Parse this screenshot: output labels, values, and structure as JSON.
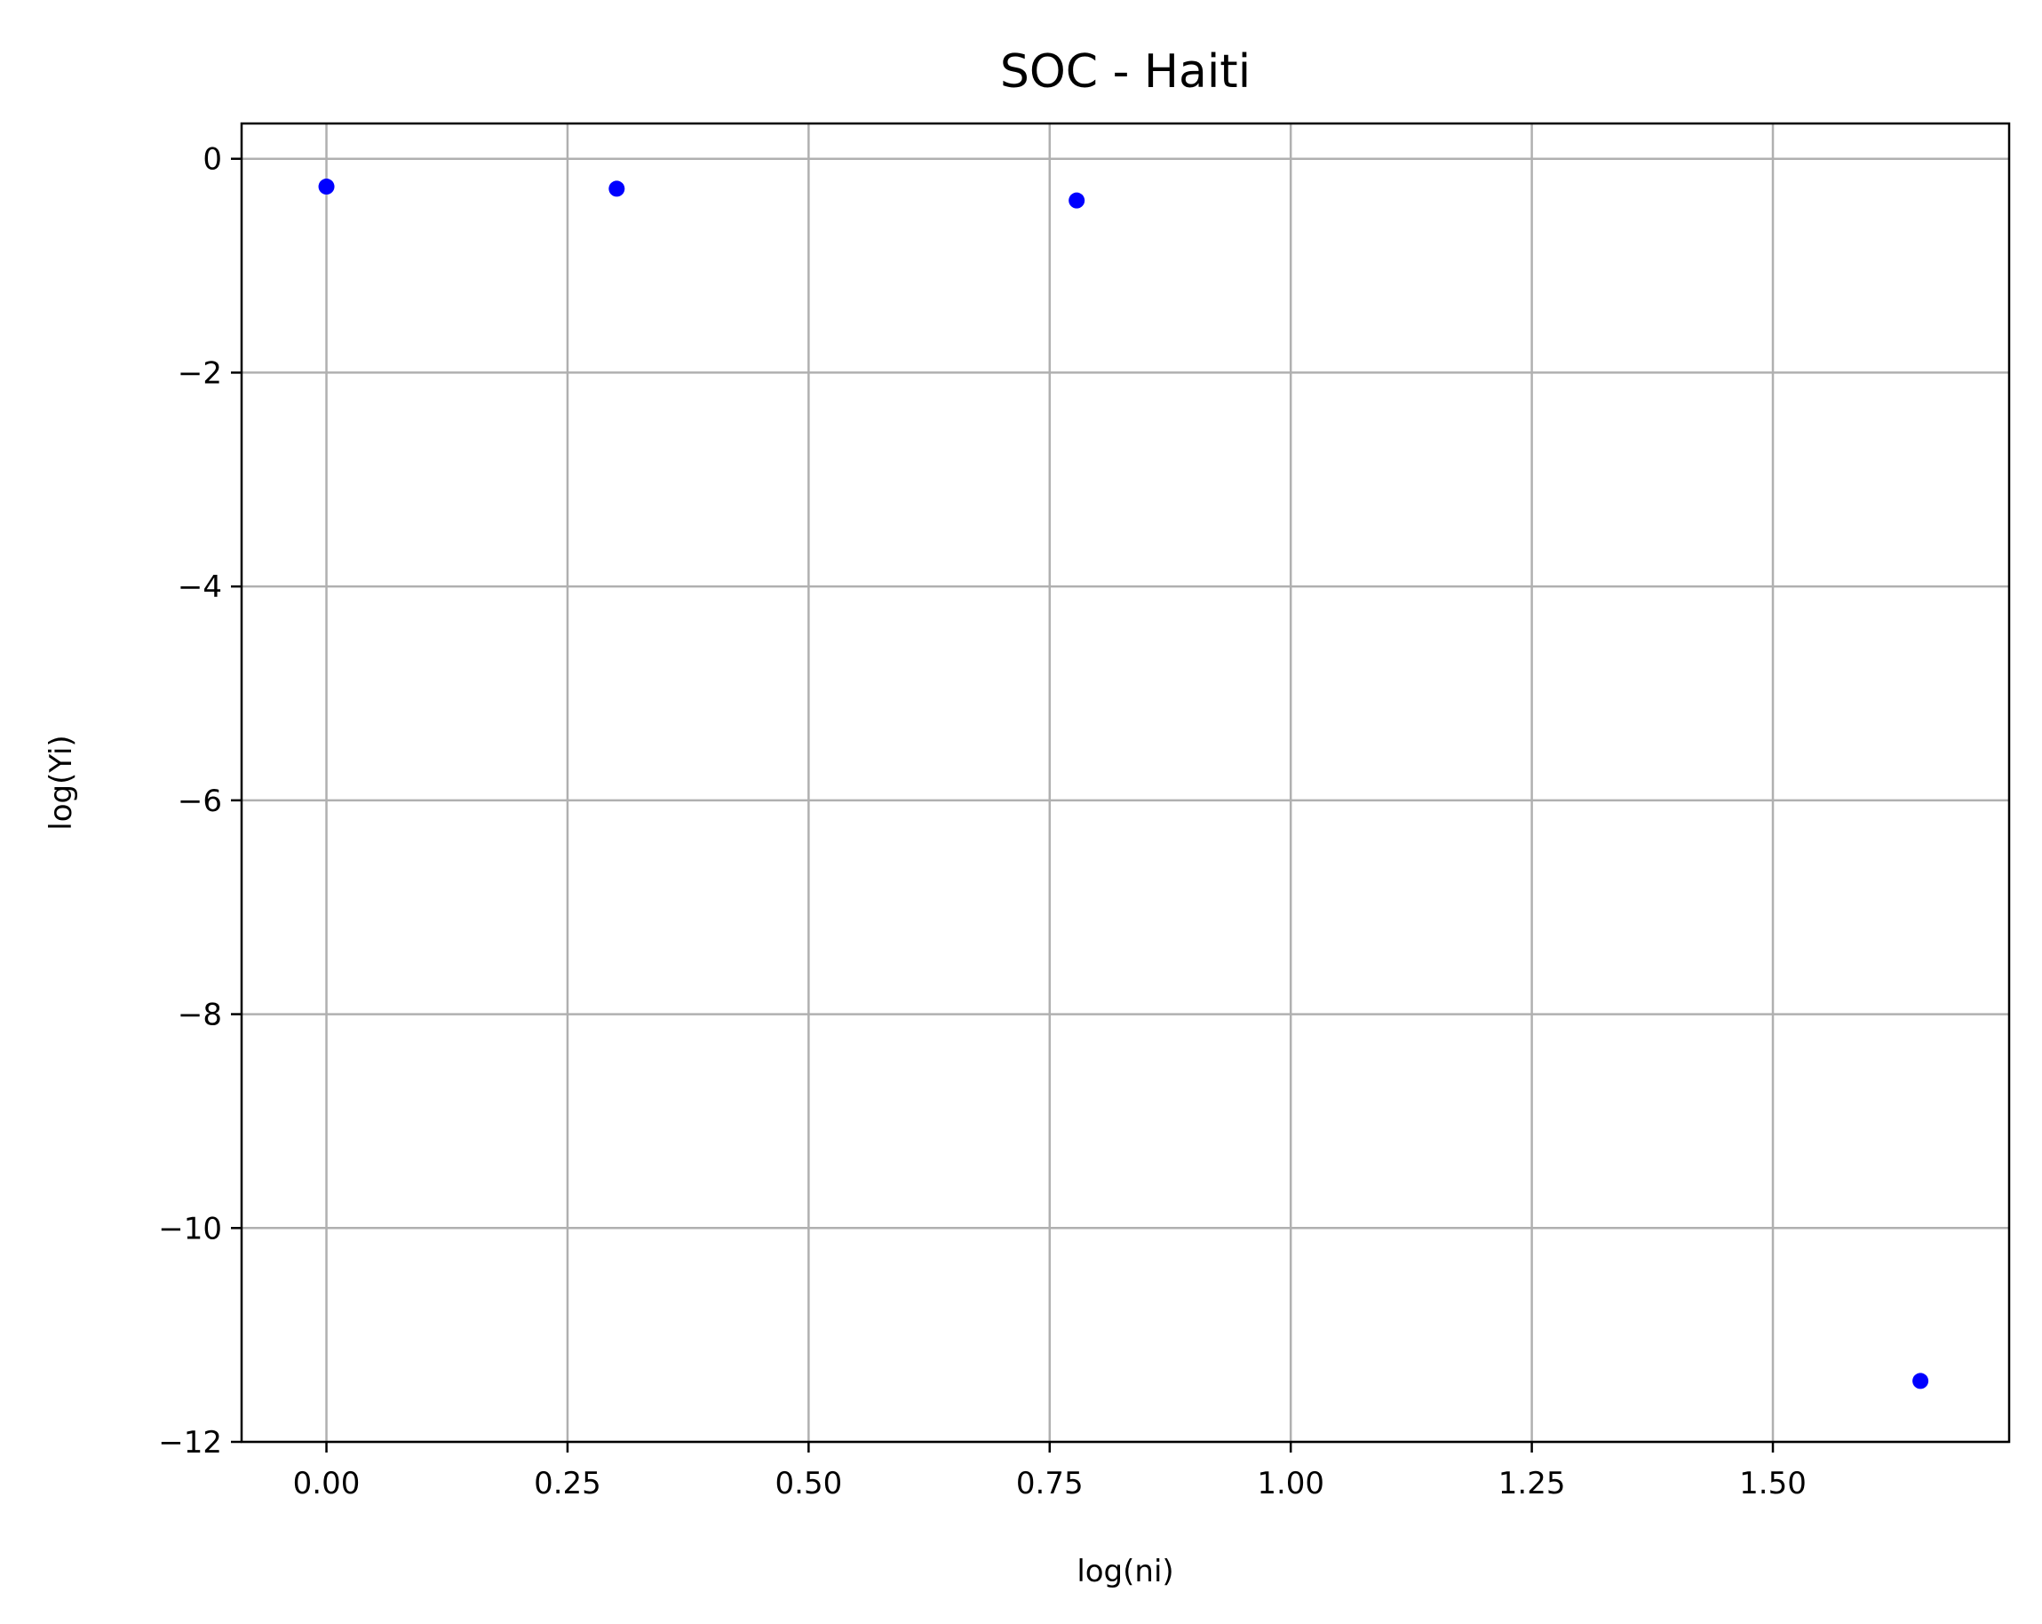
{
  "chart_data": {
    "type": "scatter",
    "title": "SOC - Haiti",
    "xlabel": "log(ni)",
    "ylabel": "log(Yi)",
    "xlim": [
      -0.088,
      1.745
    ],
    "ylim": [
      -12.0,
      0.33
    ],
    "x_ticks": [
      0.0,
      0.25,
      0.5,
      0.75,
      1.0,
      1.25,
      1.5
    ],
    "x_tick_labels": [
      "0.00",
      "0.25",
      "0.50",
      "0.75",
      "1.00",
      "1.25",
      "1.50"
    ],
    "y_ticks": [
      0,
      -2,
      -4,
      -6,
      -8,
      -10,
      -12
    ],
    "y_tick_labels": [
      "0",
      "−2",
      "−4",
      "−6",
      "−8",
      "−10",
      "−12"
    ],
    "grid": true,
    "point_color": "#0000ff",
    "grid_color": "#b0b0b0",
    "points": [
      {
        "x": 0.0,
        "y": -0.26
      },
      {
        "x": 0.301,
        "y": -0.28
      },
      {
        "x": 0.778,
        "y": -0.39
      },
      {
        "x": 1.653,
        "y": -11.43
      }
    ]
  }
}
